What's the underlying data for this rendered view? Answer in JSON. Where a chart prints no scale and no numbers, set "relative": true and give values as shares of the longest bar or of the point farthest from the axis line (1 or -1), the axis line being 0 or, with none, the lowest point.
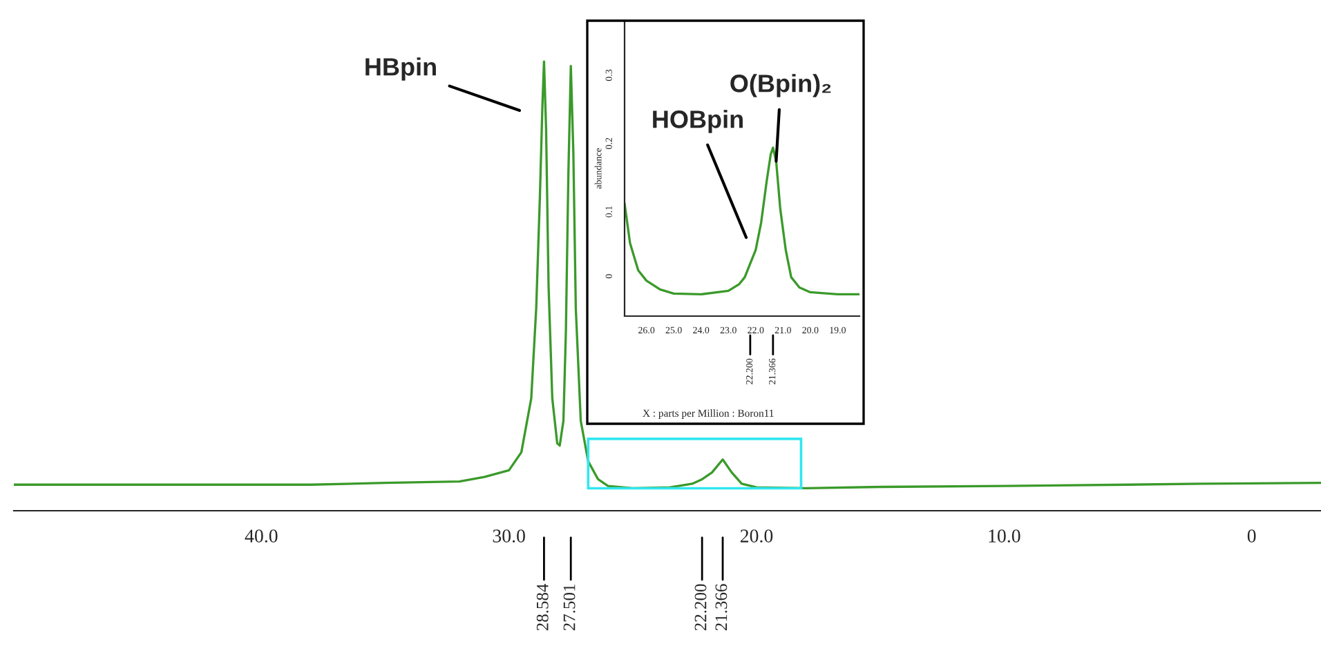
{
  "chart_data": [
    {
      "type": "line",
      "relative": true,
      "color": "#3a9a2a",
      "x": [
        50,
        40,
        38,
        35,
        32,
        31,
        30,
        29.5,
        29.1,
        28.9,
        28.75,
        28.65,
        28.584,
        28.5,
        28.4,
        28.25,
        28.05,
        27.95,
        27.8,
        27.7,
        27.6,
        27.501,
        27.4,
        27.3,
        27.1,
        26.8,
        26.4,
        26,
        25,
        23.5,
        22.6,
        22.2,
        21.8,
        21.366,
        21.0,
        20.6,
        20.0,
        18,
        15,
        10,
        5,
        2,
        -2.8
      ],
      "values": [
        0.058,
        0.058,
        0.058,
        0.062,
        0.065,
        0.075,
        0.09,
        0.13,
        0.25,
        0.45,
        0.7,
        0.9,
        1.0,
        0.85,
        0.5,
        0.25,
        0.15,
        0.145,
        0.2,
        0.4,
        0.75,
        0.99,
        0.8,
        0.45,
        0.2,
        0.11,
        0.07,
        0.055,
        0.05,
        0.052,
        0.06,
        0.07,
        0.085,
        0.114,
        0.085,
        0.06,
        0.052,
        0.05,
        0.053,
        0.055,
        0.058,
        0.06,
        0.062
      ],
      "xlim": [
        50,
        -2.8
      ],
      "xticks": [
        {
          "value": 40,
          "label": "40.0"
        },
        {
          "value": 30,
          "label": "30.0"
        },
        {
          "value": 20,
          "label": "20.0"
        },
        {
          "value": 10,
          "label": "10.0"
        },
        0
      ],
      "annotations": [
        "HBpin",
        {
          "text": "28.584",
          "x": 28.584
        },
        {
          "text": "27.501",
          "x": 27.501
        },
        {
          "text": "22.200",
          "x": 22.2
        },
        {
          "text": "21.366",
          "x": 21.366
        }
      ]
    },
    {
      "type": "line",
      "color": "#3a9a2a",
      "x": [
        26.8,
        26.6,
        26.3,
        26.0,
        25.5,
        25.0,
        24.0,
        23.0,
        22.6,
        22.4,
        22.2,
        22.0,
        21.8,
        21.6,
        21.45,
        21.366,
        21.25,
        21.1,
        20.9,
        20.7,
        20.4,
        20.0,
        19.0,
        18.2
      ],
      "values": [
        0.108,
        0.05,
        0.01,
        -0.005,
        -0.018,
        -0.024,
        -0.025,
        -0.02,
        -0.01,
        0.0,
        0.02,
        0.04,
        0.08,
        0.14,
        0.18,
        0.19,
        0.17,
        0.1,
        0.04,
        0.0,
        -0.015,
        -0.022,
        -0.025,
        -0.025
      ],
      "xlim": [
        26.8,
        18.2
      ],
      "ylim": [
        -0.057,
        0.376
      ],
      "xticks": [
        {
          "value": 26,
          "label": "26.0"
        },
        {
          "value": 25,
          "label": "25.0"
        },
        {
          "value": 24,
          "label": "24.0"
        },
        {
          "value": 23,
          "label": "23.0"
        },
        {
          "value": 22,
          "label": "22.0"
        },
        {
          "value": 21,
          "label": "21.0"
        },
        {
          "value": 20,
          "label": "20.0"
        },
        {
          "value": 19,
          "label": "19.0"
        }
      ],
      "yticks": [
        0,
        0.1,
        0.2,
        0.3
      ],
      "xlabel": "X : parts per Million : Boron11",
      "ylabel": "abundance",
      "annotations": [
        "HOBpin",
        {
          "text": "O(Bpin)₂",
          "x": 21.25,
          "y": 0.17
        },
        {
          "text": "22.200",
          "x": 22.2
        },
        {
          "text": "21.366",
          "x": 21.366
        }
      ]
    }
  ]
}
